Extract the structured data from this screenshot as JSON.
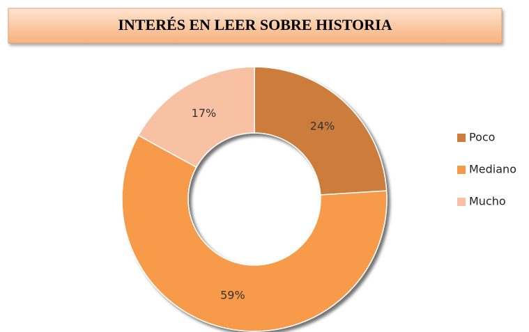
{
  "chart_data": {
    "type": "pie",
    "title": "INTERÉS EN LEER SOBRE HISTORIA",
    "categories": [
      "Poco",
      "Mediano",
      "Mucho"
    ],
    "values": [
      24,
      59,
      17
    ],
    "value_labels": [
      "24%",
      "59%",
      "17%"
    ],
    "colors": [
      "#cd7d3a",
      "#f79a48",
      "#f9c1a3"
    ],
    "donut": true,
    "legend": "right"
  }
}
